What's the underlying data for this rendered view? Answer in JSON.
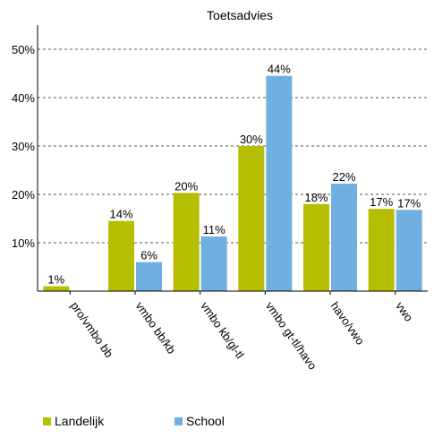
{
  "chart_data": {
    "type": "bar",
    "title": "Toetsadvies",
    "xlabel": "",
    "ylabel": "",
    "ylim": [
      0,
      55
    ],
    "yticks": [
      10,
      20,
      30,
      40,
      50
    ],
    "ytick_labels": [
      "10%",
      "20%",
      "30%",
      "40%",
      "50%"
    ],
    "grid": true,
    "legend_position": "bottom-left",
    "categories": [
      "pro/vmbo bb",
      "vmbo bb/kb",
      "vmbo kb/gl-tl",
      "vmbo gt-tl/havo",
      "havo/vwo",
      "vwo"
    ],
    "series": [
      {
        "name": "Landelijk",
        "color": "#b5be00",
        "values": [
          1,
          14.5,
          20.3,
          30,
          18,
          17
        ],
        "labels": [
          "1%",
          "14%",
          "20%",
          "30%",
          "18%",
          "17%"
        ]
      },
      {
        "name": "School",
        "color": "#6fb0e0",
        "values": [
          0,
          6,
          11.3,
          44.5,
          22.2,
          16.8
        ],
        "labels": [
          "",
          "6%",
          "11%",
          "44%",
          "22%",
          "17%"
        ]
      }
    ]
  }
}
